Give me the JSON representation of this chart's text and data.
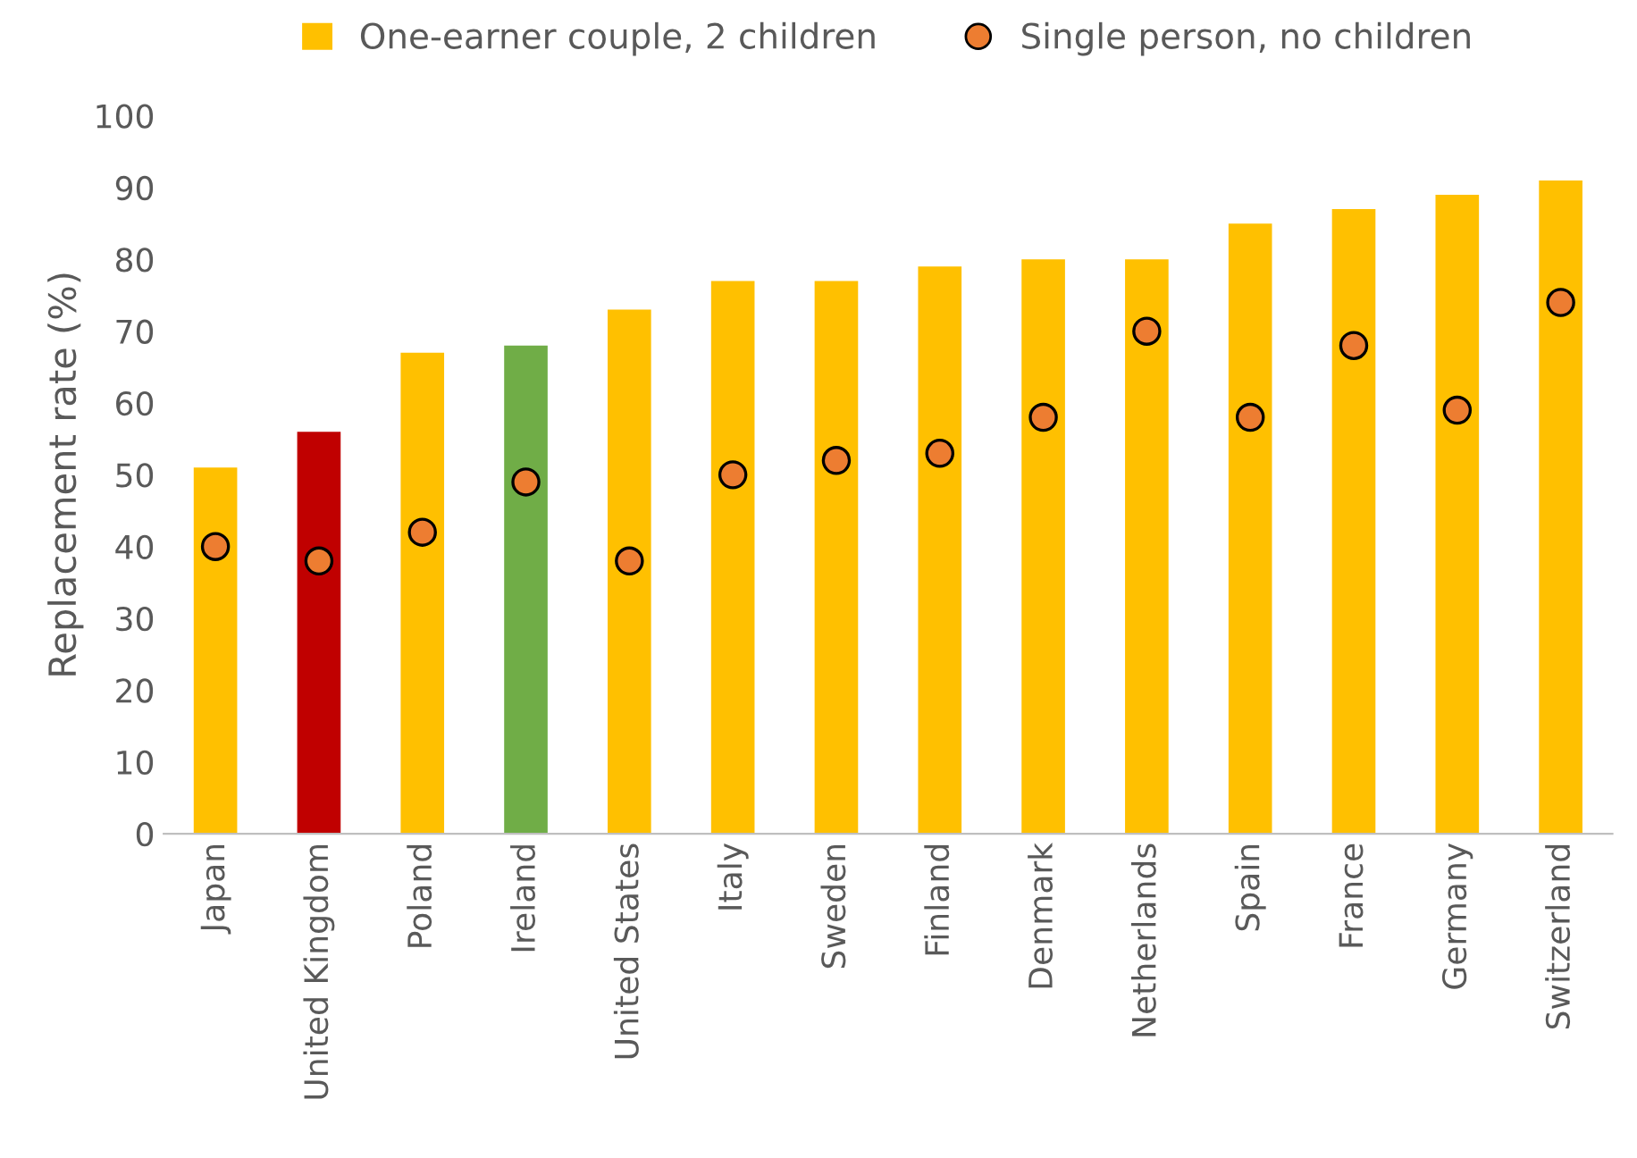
{
  "chart_data": {
    "type": "bar",
    "ylabel": "Replacement rate (%)",
    "categories": [
      "Japan",
      "United Kingdom",
      "Poland",
      "Ireland",
      "United States",
      "Italy",
      "Sweden",
      "Finland",
      "Denmark",
      "Netherlands",
      "Spain",
      "France",
      "Germany",
      "Switzerland"
    ],
    "series": [
      {
        "name": "One-earner couple, 2 children",
        "color": "#ffc000",
        "colors": [
          "#ffc000",
          "#c00000",
          "#ffc000",
          "#70ad47",
          "#ffc000",
          "#ffc000",
          "#ffc000",
          "#ffc000",
          "#ffc000",
          "#ffc000",
          "#ffc000",
          "#ffc000",
          "#ffc000",
          "#ffc000"
        ],
        "values": [
          51,
          56,
          67,
          68,
          73,
          77,
          77,
          79,
          80,
          80,
          85,
          87,
          89,
          91
        ]
      },
      {
        "name": "Single person, no children",
        "type": "scatter",
        "marker": "circle",
        "color": "#ed7d31",
        "values": [
          40,
          38,
          42,
          49,
          38,
          50,
          52,
          53,
          58,
          70,
          58,
          68,
          59,
          74
        ]
      }
    ],
    "ylim": [
      0,
      100
    ],
    "yticks": [
      0,
      10,
      20,
      30,
      40,
      50,
      60,
      70,
      80,
      90,
      100
    ],
    "grid": false,
    "legend": "top"
  }
}
